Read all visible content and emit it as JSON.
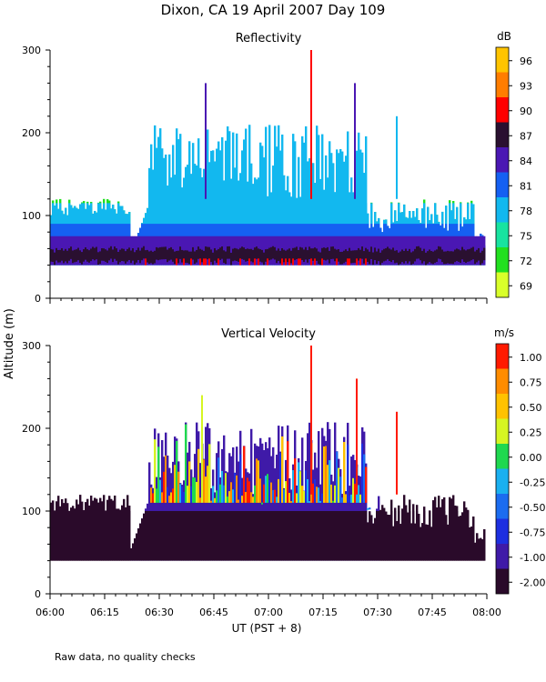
{
  "title": "Dixon, CA 19 April 2007  Day 109",
  "footer": "Raw data, no quality checks",
  "colors": {
    "reflectivity_scale": [
      "#d9ff2a",
      "#22e01f",
      "#18e3a0",
      "#12b8ef",
      "#1560f2",
      "#4a17b3",
      "#2a1030",
      "#ff0000",
      "#ff7d00",
      "#ffc400"
    ],
    "velocity_scale": [
      "#2a0a2a",
      "#3f1aa8",
      "#1d2fe0",
      "#1b6cf0",
      "#1ab0f0",
      "#1fd84f",
      "#d6f522",
      "#ffc200",
      "#ff8c00",
      "#ff1a00"
    ]
  },
  "chart_data": [
    {
      "type": "heatmap",
      "title": "Reflectivity",
      "xlabel": "UT  (PST + 8)",
      "ylabel": "Altitude (m)",
      "x_range_minutes": [
        0,
        120
      ],
      "ylim": [
        0,
        300
      ],
      "yticks": [
        0,
        100,
        200,
        300
      ],
      "xticks": [
        "06:00",
        "06:15",
        "06:30",
        "06:45",
        "07:00",
        "07:15",
        "07:30",
        "07:45",
        "08:00"
      ],
      "colorbar_unit": "dB",
      "colorbar_ticks": [
        "96",
        "93",
        "90",
        "87",
        "84",
        "81",
        "78",
        "75",
        "72",
        "69"
      ],
      "colorbar_range": [
        68,
        98
      ],
      "data_floor_m": 40
    },
    {
      "type": "heatmap",
      "title": "Vertical Velocity",
      "xlabel": "UT  (PST + 8)",
      "ylabel": "Altitude (m)",
      "x_range_minutes": [
        0,
        120
      ],
      "ylim": [
        0,
        300
      ],
      "yticks": [
        0,
        100,
        200,
        300
      ],
      "xticks": [
        "06:00",
        "06:15",
        "06:30",
        "06:45",
        "07:00",
        "07:15",
        "07:30",
        "07:45",
        "08:00"
      ],
      "colorbar_unit": "m/s",
      "colorbar_ticks": [
        "1.00",
        "0.75",
        "0.50",
        "0.25",
        "0.00",
        "-0.25",
        "-0.50",
        "-0.75",
        "-1.00",
        "-2.00"
      ],
      "colorbar_range": [
        -2.0,
        1.25
      ],
      "data_floor_m": 40
    }
  ],
  "axis_label_y": "Altitude (m)",
  "axis_label_x": "UT  (PST + 8)"
}
